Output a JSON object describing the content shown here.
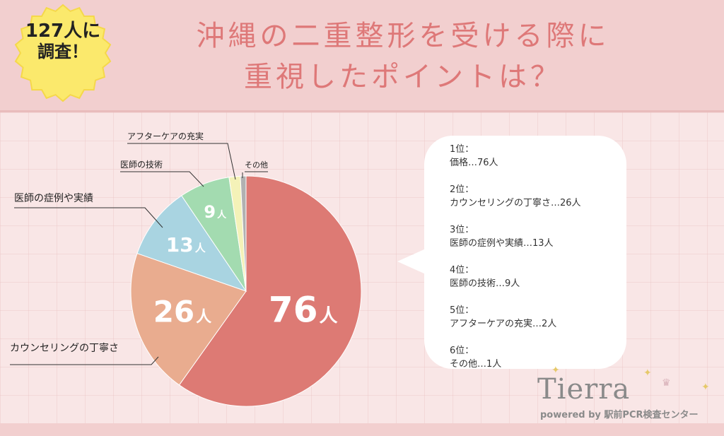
{
  "badge": {
    "line1": "127人に",
    "line2": "調査！"
  },
  "title": {
    "line1": "沖縄の二重整形を受ける際に",
    "line2": "重視したポイントは？"
  },
  "chart_data": {
    "type": "pie",
    "title": "沖縄の二重整形を受ける際に重視したポイントは？",
    "total": 127,
    "unit": "人",
    "slices": [
      {
        "label": "価格",
        "value": 76,
        "color": "#dd7a74",
        "value_text": "76",
        "unit": "人"
      },
      {
        "label": "カウンセリングの丁寧さ",
        "value": 26,
        "color": "#e9ac8f",
        "value_text": "26",
        "unit": "人"
      },
      {
        "label": "医師の症例や実績",
        "value": 13,
        "color": "#a9d4e1",
        "value_text": "13",
        "unit": "人"
      },
      {
        "label": "医師の技術",
        "value": 9,
        "color": "#a3dbb0",
        "value_text": "9",
        "unit": "人"
      },
      {
        "label": "アフターケアの充実",
        "value": 2,
        "color": "#f4f2b8",
        "value_text": "",
        "unit": ""
      },
      {
        "label": "その他",
        "value": 1,
        "color": "#b1b1b1",
        "value_text": "",
        "unit": ""
      }
    ]
  },
  "ranking": [
    {
      "rank": "1位：",
      "text": "価格…76人"
    },
    {
      "rank": "2位：",
      "text": "カウンセリングの丁寧さ…26人"
    },
    {
      "rank": "3位：",
      "text": "医師の症例や実績…13人"
    },
    {
      "rank": "4位：",
      "text": "医師の技術…9人"
    },
    {
      "rank": "5位：",
      "text": "アフターケアの充実…2人"
    },
    {
      "rank": "6位：",
      "text": "その他…1人"
    }
  ],
  "logo": {
    "word": "Tierra",
    "sub": "powered by 駅前PCR検査センター"
  }
}
